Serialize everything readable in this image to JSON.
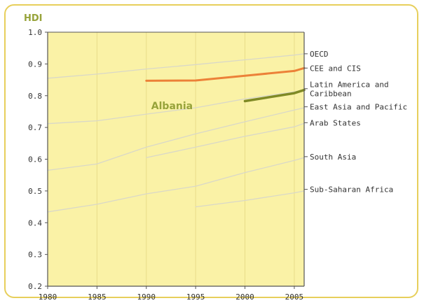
{
  "chart_data": {
    "type": "line",
    "ylabel": "HDI",
    "xlabel": "",
    "xlim": [
      1980,
      2006
    ],
    "ylim": [
      0.2,
      1.0
    ],
    "x_ticks": [
      "1980",
      "1985",
      "1990",
      "1995",
      "2000",
      "2005"
    ],
    "y_ticks": [
      "0.2",
      "0.3",
      "0.4",
      "0.5",
      "0.6",
      "0.7",
      "0.8",
      "0.9",
      "1.0"
    ],
    "annotation": "Albania",
    "colors": {
      "plot_bg": "#faf2a6",
      "region_line": "#d9d8c8",
      "cee_cis": "#ec8138",
      "albania": "#7f8a25",
      "frame": "#e7cf5b"
    },
    "series": [
      {
        "name": "OECD",
        "x": [
          1980,
          1985,
          1990,
          1995,
          2000,
          2005,
          2006
        ],
        "y": [
          0.855,
          0.868,
          0.884,
          0.898,
          0.913,
          0.928,
          0.932
        ]
      },
      {
        "name": "CEE and CIS",
        "x": [
          1990,
          1995,
          2000,
          2005,
          2006
        ],
        "y": [
          0.847,
          0.848,
          0.863,
          0.878,
          0.887
        ]
      },
      {
        "name": "Latin America and Caribbean",
        "x": [
          1980,
          1985,
          1990,
          1995,
          2000,
          2005,
          2006
        ],
        "y": [
          0.712,
          0.721,
          0.742,
          0.762,
          0.79,
          0.812,
          0.818
        ]
      },
      {
        "name": "East Asia and Pacific",
        "x": [
          1980,
          1985,
          1990,
          1995,
          2000,
          2005,
          2006
        ],
        "y": [
          0.565,
          0.585,
          0.638,
          0.68,
          0.718,
          0.755,
          0.762
        ]
      },
      {
        "name": "Arab States",
        "x": [
          1990,
          1995,
          2000,
          2005,
          2006
        ],
        "y": [
          0.605,
          0.638,
          0.672,
          0.702,
          0.713
        ]
      },
      {
        "name": "South Asia",
        "x": [
          1980,
          1985,
          1990,
          1995,
          2000,
          2005,
          2006
        ],
        "y": [
          0.434,
          0.458,
          0.491,
          0.515,
          0.558,
          0.596,
          0.605
        ]
      },
      {
        "name": "Sub-Saharan Africa",
        "x": [
          1995,
          2000,
          2005,
          2006
        ],
        "y": [
          0.45,
          0.47,
          0.494,
          0.5
        ]
      },
      {
        "name": "Albania",
        "x": [
          2000,
          2005,
          2006
        ],
        "y": [
          0.783,
          0.808,
          0.818
        ]
      }
    ],
    "label_lines": [
      {
        "name": "oecd",
        "lines": [
          "OECD"
        ],
        "y": 0.932
      },
      {
        "name": "cee-cis",
        "lines": [
          "CEE and CIS"
        ],
        "y": 0.887
      },
      {
        "name": "latin-america",
        "lines": [
          "Latin America and",
          "Caribbean"
        ],
        "y": 0.822
      },
      {
        "name": "east-asia",
        "lines": [
          "East Asia and Pacific"
        ],
        "y": 0.765
      },
      {
        "name": "arab-states",
        "lines": [
          "Arab States"
        ],
        "y": 0.715
      },
      {
        "name": "south-asia",
        "lines": [
          "South Asia"
        ],
        "y": 0.608
      },
      {
        "name": "sub-saharan",
        "lines": [
          "Sub-Saharan Africa"
        ],
        "y": 0.505
      }
    ]
  }
}
